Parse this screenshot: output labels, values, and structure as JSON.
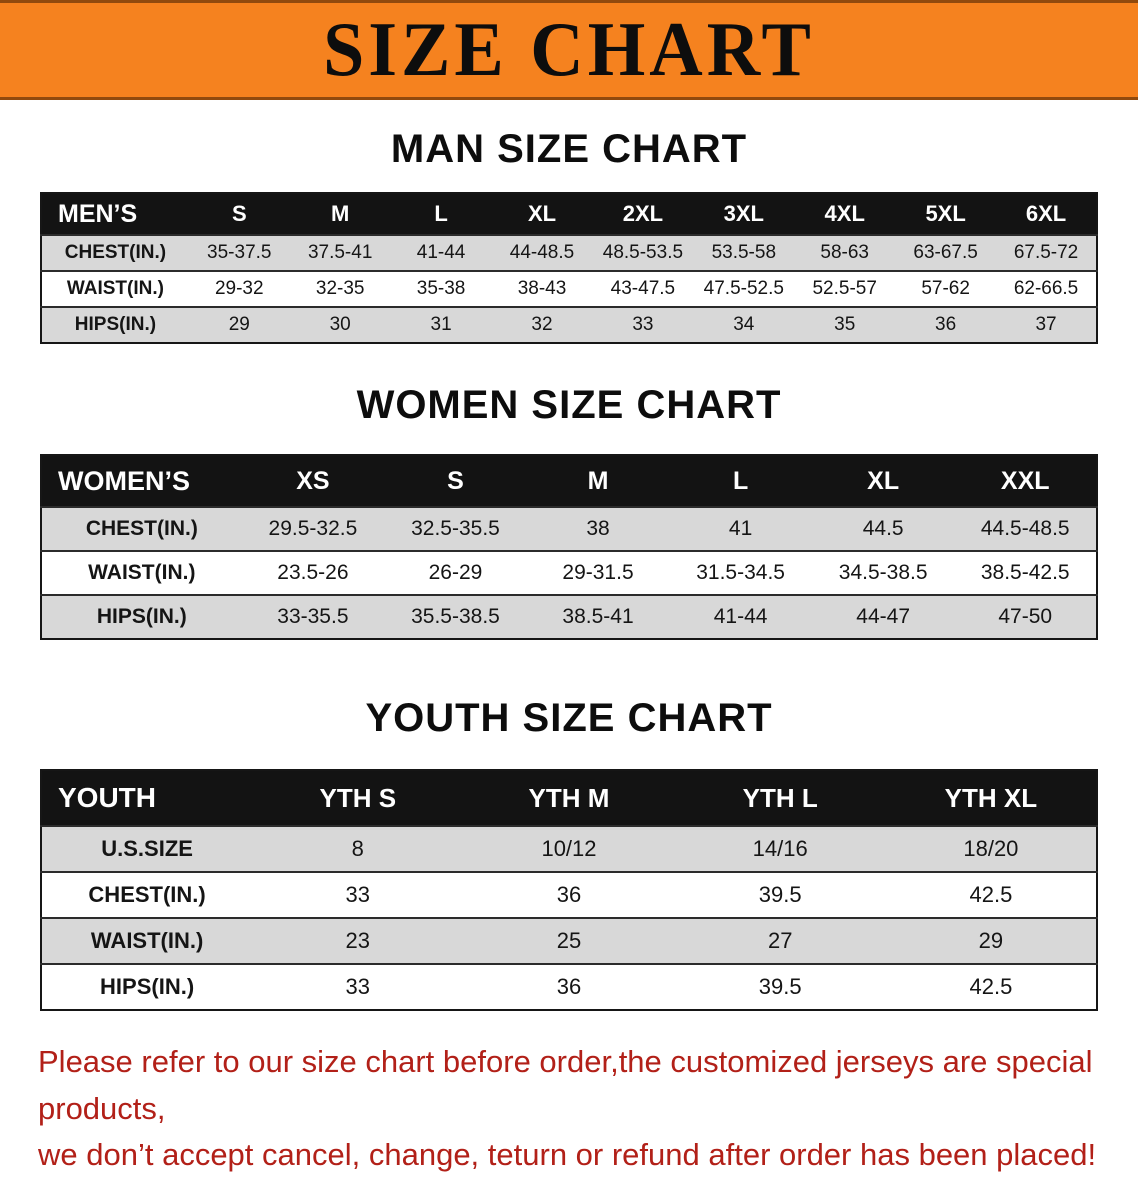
{
  "banner": {
    "title": "SIZE CHART"
  },
  "colors": {
    "banner_bg": "#F5821F",
    "table_header_bg": "#131313",
    "row_stripe": "#D8D8D8",
    "note_red": "#B22018"
  },
  "sections": [
    {
      "heading": "MAN SIZE CHART",
      "table": {
        "header": [
          "MEN’S",
          "S",
          "M",
          "L",
          "XL",
          "2XL",
          "3XL",
          "4XL",
          "5XL",
          "6XL"
        ],
        "rows": [
          [
            "CHEST(IN.)",
            "35-37.5",
            "37.5-41",
            "41-44",
            "44-48.5",
            "48.5-53.5",
            "53.5-58",
            "58-63",
            "63-67.5",
            "67.5-72"
          ],
          [
            "WAIST(IN.)",
            "29-32",
            "32-35",
            "35-38",
            "38-43",
            "43-47.5",
            "47.5-52.5",
            "52.5-57",
            "57-62",
            "62-66.5"
          ],
          [
            "HIPS(IN.)",
            "29",
            "30",
            "31",
            "32",
            "33",
            "34",
            "35",
            "36",
            "37"
          ]
        ]
      }
    },
    {
      "heading": "WOMEN SIZE CHART",
      "table": {
        "header": [
          "WOMEN’S",
          "XS",
          "S",
          "M",
          "L",
          "XL",
          "XXL"
        ],
        "rows": [
          [
            "CHEST(IN.)",
            "29.5-32.5",
            "32.5-35.5",
            "38",
            "41",
            "44.5",
            "44.5-48.5"
          ],
          [
            "WAIST(IN.)",
            "23.5-26",
            "26-29",
            "29-31.5",
            "31.5-34.5",
            "34.5-38.5",
            "38.5-42.5"
          ],
          [
            "HIPS(IN.)",
            "33-35.5",
            "35.5-38.5",
            "38.5-41",
            "41-44",
            "44-47",
            "47-50"
          ]
        ]
      }
    },
    {
      "heading": "YOUTH SIZE CHART",
      "table": {
        "header": [
          "YOUTH",
          "YTH S",
          "YTH M",
          "YTH L",
          "YTH XL"
        ],
        "rows": [
          [
            "U.S.SIZE",
            "8",
            "10/12",
            "14/16",
            "18/20"
          ],
          [
            "CHEST(IN.)",
            "33",
            "36",
            "39.5",
            "42.5"
          ],
          [
            "WAIST(IN.)",
            "23",
            "25",
            "27",
            "29"
          ],
          [
            "HIPS(IN.)",
            "33",
            "36",
            "39.5",
            "42.5"
          ]
        ]
      }
    }
  ],
  "note": {
    "line1": "Please refer to our size chart before order,the customized jerseys are special products,",
    "line2": "we don’t accept cancel, change, teturn or refund after order has been placed!"
  }
}
